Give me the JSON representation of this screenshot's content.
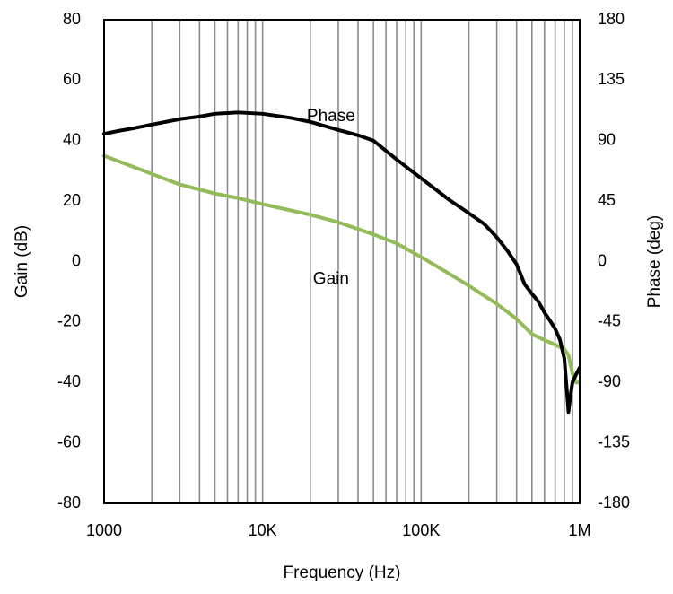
{
  "chart_data": {
    "type": "line",
    "title": "",
    "xlabel": "Frequency (Hz)",
    "ylabel": "Gain (dB)",
    "y2label": "Phase (deg)",
    "x_scale": "log",
    "xlim": [
      1000,
      1000000
    ],
    "ylim": [
      -80,
      80
    ],
    "y2lim": [
      -180,
      180
    ],
    "x_ticks": [
      {
        "value": 1000,
        "label": "1000"
      },
      {
        "value": 10000,
        "label": "10K"
      },
      {
        "value": 100000,
        "label": "100K"
      },
      {
        "value": 1000000,
        "label": "1M"
      }
    ],
    "y_ticks": [
      {
        "value": 80,
        "label": "80"
      },
      {
        "value": 60,
        "label": "60"
      },
      {
        "value": 40,
        "label": "40"
      },
      {
        "value": 20,
        "label": "20"
      },
      {
        "value": 0,
        "label": "0"
      },
      {
        "value": -20,
        "label": "-20"
      },
      {
        "value": -40,
        "label": "-40"
      },
      {
        "value": -60,
        "label": "-60"
      },
      {
        "value": -80,
        "label": "-80"
      }
    ],
    "y2_ticks": [
      {
        "value": 180,
        "label": "180"
      },
      {
        "value": 135,
        "label": "135"
      },
      {
        "value": 90,
        "label": "90"
      },
      {
        "value": 45,
        "label": "45"
      },
      {
        "value": 0,
        "label": "0"
      },
      {
        "value": -45,
        "label": "-45"
      },
      {
        "value": -90,
        "label": "-90"
      },
      {
        "value": -135,
        "label": "-135"
      },
      {
        "value": -180,
        "label": "-180"
      }
    ],
    "grid": {
      "vertical_minor": true,
      "horizontal": false
    },
    "series": [
      {
        "name": "Phase",
        "axis": "right",
        "color": "#000000",
        "points": [
          [
            1000,
            95
          ],
          [
            1200,
            97
          ],
          [
            1500,
            99
          ],
          [
            2000,
            102
          ],
          [
            3000,
            106
          ],
          [
            4000,
            108
          ],
          [
            5000,
            110
          ],
          [
            7000,
            111
          ],
          [
            10000,
            110
          ],
          [
            15000,
            107
          ],
          [
            20000,
            104
          ],
          [
            30000,
            98
          ],
          [
            40000,
            94
          ],
          [
            50000,
            90
          ],
          [
            70000,
            76
          ],
          [
            100000,
            62
          ],
          [
            150000,
            46
          ],
          [
            200000,
            36
          ],
          [
            250000,
            28
          ],
          [
            300000,
            18
          ],
          [
            350000,
            8
          ],
          [
            400000,
            -2
          ],
          [
            450000,
            -17
          ],
          [
            500000,
            -24
          ],
          [
            550000,
            -30
          ],
          [
            600000,
            -38
          ],
          [
            650000,
            -44
          ],
          [
            700000,
            -50
          ],
          [
            750000,
            -58
          ],
          [
            800000,
            -72
          ],
          [
            830000,
            -96
          ],
          [
            850000,
            -112
          ],
          [
            870000,
            -102
          ],
          [
            900000,
            -90
          ],
          [
            950000,
            -84
          ],
          [
            1000000,
            -79
          ]
        ]
      },
      {
        "name": "Gain",
        "axis": "left",
        "color": "#92BC5A",
        "points": [
          [
            1000,
            35
          ],
          [
            1500,
            31.5
          ],
          [
            2000,
            29
          ],
          [
            3000,
            25.5
          ],
          [
            5000,
            22.5
          ],
          [
            7000,
            21
          ],
          [
            10000,
            19
          ],
          [
            20000,
            15.5
          ],
          [
            30000,
            13
          ],
          [
            50000,
            9
          ],
          [
            70000,
            6
          ],
          [
            100000,
            1.5
          ],
          [
            150000,
            -4
          ],
          [
            200000,
            -8
          ],
          [
            300000,
            -14
          ],
          [
            400000,
            -19
          ],
          [
            500000,
            -24
          ],
          [
            600000,
            -26
          ],
          [
            700000,
            -27.5
          ],
          [
            800000,
            -29
          ],
          [
            850000,
            -31
          ],
          [
            900000,
            -37
          ],
          [
            950000,
            -40
          ],
          [
            1000000,
            -40
          ]
        ]
      }
    ],
    "annotations": [
      {
        "text": "Phase",
        "x": 27000,
        "y": 108,
        "axis": "right"
      },
      {
        "text": "Gain",
        "x": 27000,
        "y": -6,
        "axis": "left"
      }
    ]
  }
}
